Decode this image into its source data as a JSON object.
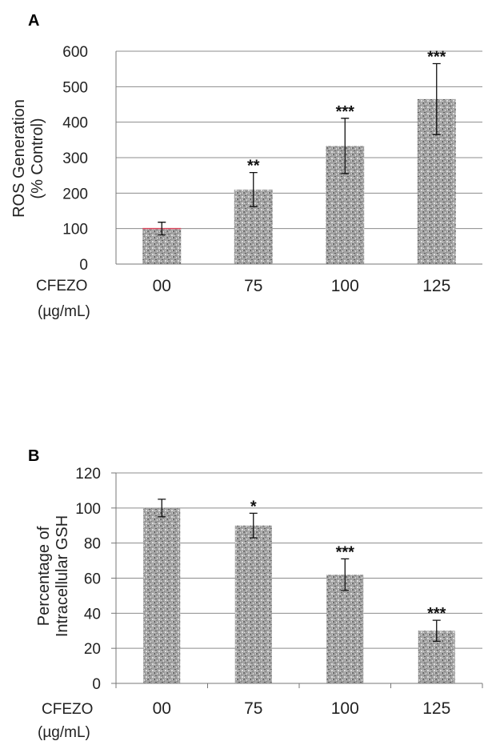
{
  "chart_data": [
    {
      "panel": "A",
      "type": "bar",
      "ylabel_lines": [
        "ROS Generation",
        "(% Control)"
      ],
      "xname_lines": [
        "CFEZO",
        "(µg/mL)"
      ],
      "categories": [
        "00",
        "75",
        "100",
        "125"
      ],
      "values": [
        100,
        210,
        333,
        465
      ],
      "errors": [
        18,
        48,
        78,
        100
      ],
      "annotations": [
        "",
        "**",
        "***",
        "***"
      ],
      "yticks": [
        0,
        100,
        200,
        300,
        400,
        500,
        600
      ],
      "ylim": [
        0,
        600
      ],
      "grid": true,
      "colors": {
        "bar": "#9a9a9a",
        "baseline_mark": "#d9475e"
      }
    },
    {
      "panel": "B",
      "type": "bar",
      "ylabel_lines": [
        "Percentage of",
        "Intracellular GSH"
      ],
      "xname_lines": [
        "CFEZO",
        "(µg/mL)"
      ],
      "categories": [
        "00",
        "75",
        "100",
        "125"
      ],
      "values": [
        100,
        90,
        62,
        30
      ],
      "errors": [
        5,
        7,
        9,
        6
      ],
      "annotations": [
        "",
        "*",
        "***",
        "***"
      ],
      "yticks": [
        0,
        20,
        40,
        60,
        80,
        100,
        120
      ],
      "ylim": [
        0,
        120
      ],
      "grid": true,
      "colors": {
        "bar": "#9a9a9a"
      }
    }
  ]
}
